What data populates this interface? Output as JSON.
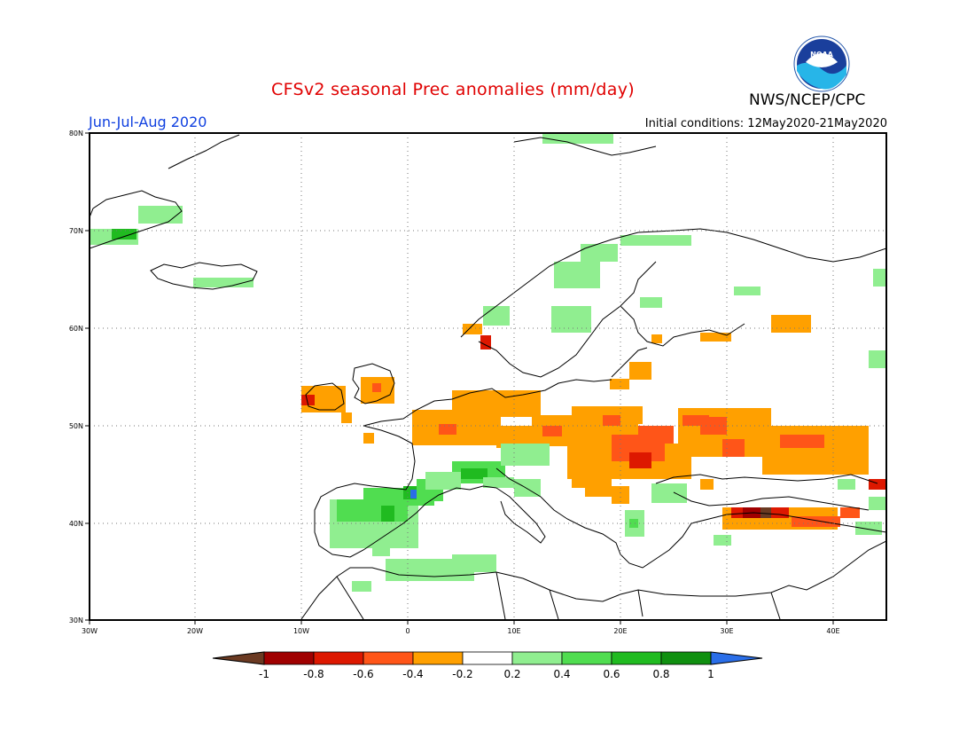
{
  "title": "CFSv2 seasonal Prec anomalies (mm/day)",
  "season": "Jun-Jul-Aug 2020",
  "initial_conditions": "Initial conditions: 12May2020-21May2020",
  "agency": "NWS/NCEP/CPC",
  "logo_text": "NOAA",
  "lat_labels": [
    "80N",
    "70N",
    "60N",
    "50N",
    "40N",
    "30N"
  ],
  "lon_labels": [
    "30W",
    "20W",
    "10W",
    "0",
    "10E",
    "20E",
    "30E",
    "40E"
  ],
  "colorbar": {
    "tick_labels": [
      "-1",
      "-0.8",
      "-0.6",
      "-0.4",
      "-0.2",
      "0.2",
      "0.4",
      "0.6",
      "0.8",
      "1"
    ],
    "colors": [
      "#6b3a22",
      "#a00000",
      "#dd1800",
      "#ff5518",
      "#ffa000",
      "#ffffff",
      "#90ee90",
      "#50dd50",
      "#20bb20",
      "#109010",
      "#2a6ee8"
    ]
  },
  "anomaly_regions": [
    {
      "region": "Ireland & western UK",
      "category": "-0.4 to -0.2",
      "color": "#ffa000"
    },
    {
      "region": "Northern France / Benelux / Germany",
      "category": "-0.4 to -0.2",
      "color": "#ffa000"
    },
    {
      "region": "Central & Eastern Europe",
      "category": "-0.4 to -0.2",
      "color": "#ffa000"
    },
    {
      "region": "Ukraine / Southern Russia",
      "category": "-0.6 to -0.4",
      "color": "#ff5518"
    },
    {
      "region": "Northern Turkey",
      "category": "-0.8 to -0.6",
      "color": "#dd1800"
    },
    {
      "region": "Iberia / Pyrenees",
      "category": "0.4 to 0.8",
      "color": "#50dd50"
    },
    {
      "region": "Alps / Southern France",
      "category": "0.4 to 0.6",
      "color": "#50dd50"
    },
    {
      "region": "Scandinavia",
      "category": "0.2 to 0.4",
      "color": "#90ee90"
    },
    {
      "region": "Iceland",
      "category": "0.2 to 0.4",
      "color": "#90ee90"
    },
    {
      "region": "Greenland coast",
      "category": "0.2 to 0.6",
      "color": "#50dd50"
    },
    {
      "region": "North Africa coast",
      "category": "0.2 to 0.4",
      "color": "#90ee90"
    }
  ]
}
